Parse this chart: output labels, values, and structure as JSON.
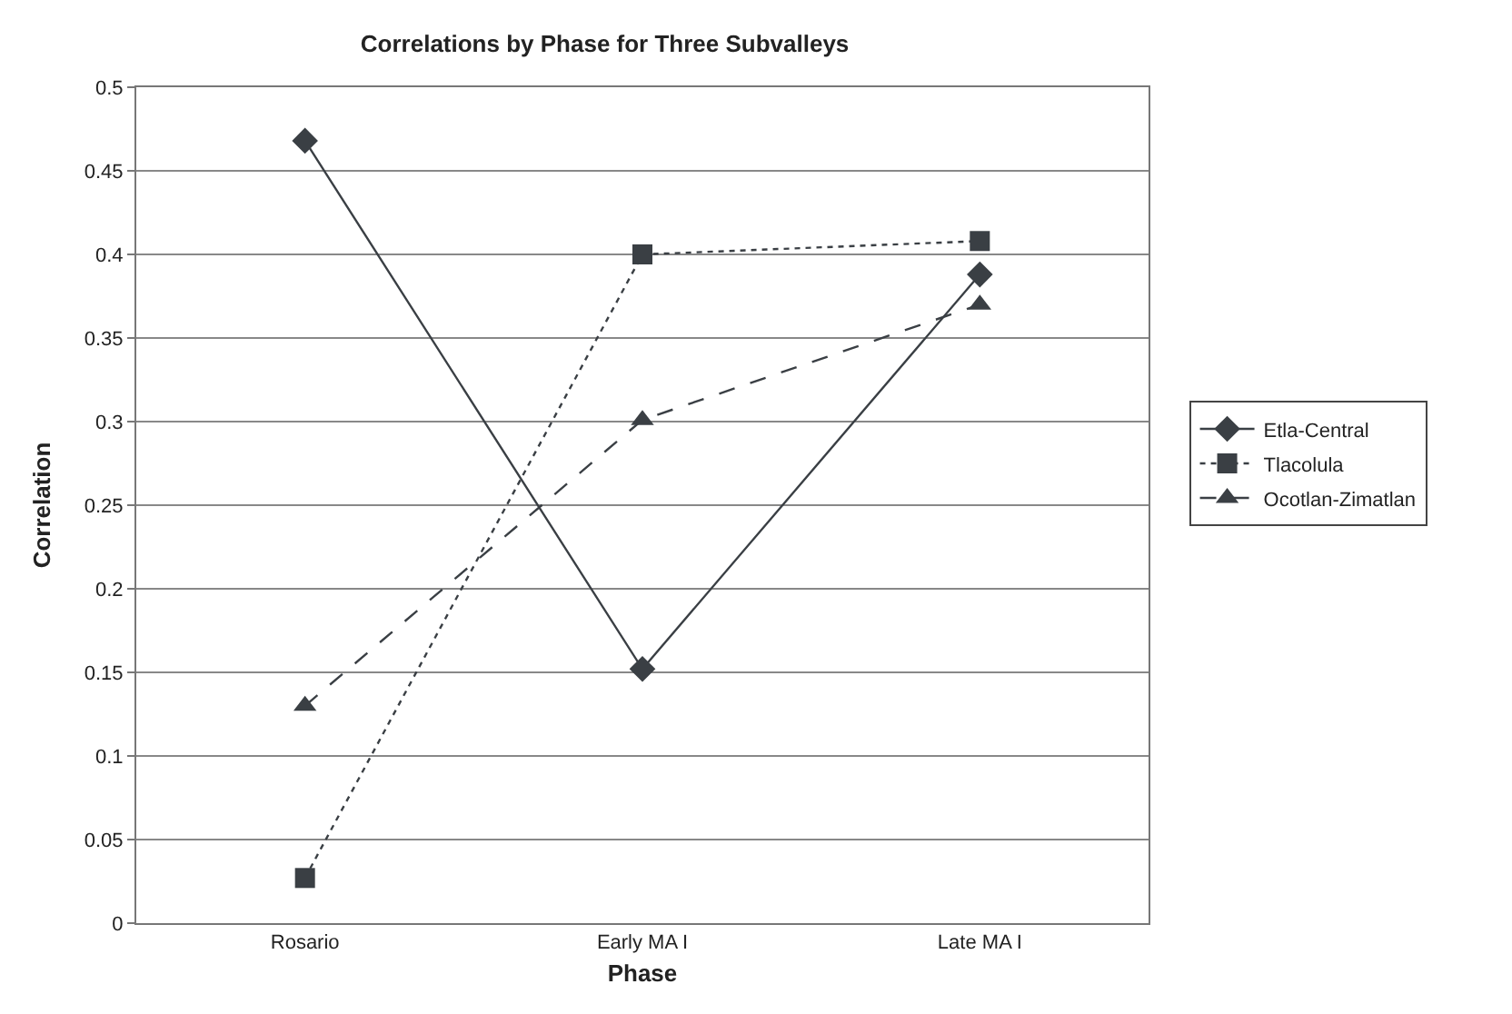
{
  "chart_data": {
    "type": "line",
    "title": "Correlations by Phase for Three Subvalleys",
    "xlabel": "Phase",
    "ylabel": "Correlation",
    "categories": [
      "Rosario",
      "Early MA I",
      "Late MA I"
    ],
    "series": [
      {
        "name": "Etla-Central",
        "color": "#3a3f44",
        "values": [
          0.468,
          0.152,
          0.388
        ],
        "marker": "diamond",
        "line_style": "solid"
      },
      {
        "name": "Tlacolula",
        "color": "#3a3f44",
        "values": [
          0.027,
          0.4,
          0.408
        ],
        "marker": "square",
        "line_style": "dotted"
      },
      {
        "name": "Ocotlan-Zimatlan",
        "color": "#3a3f44",
        "values": [
          0.13,
          0.301,
          0.37
        ],
        "marker": "triangle",
        "line_style": "dashed"
      }
    ],
    "ylim": [
      0,
      0.5
    ],
    "yticks": [
      0,
      0.05,
      0.1,
      0.15,
      0.2,
      0.25,
      0.3,
      0.35,
      0.4,
      0.45,
      0.5
    ],
    "grid": "y",
    "legend": "right"
  }
}
